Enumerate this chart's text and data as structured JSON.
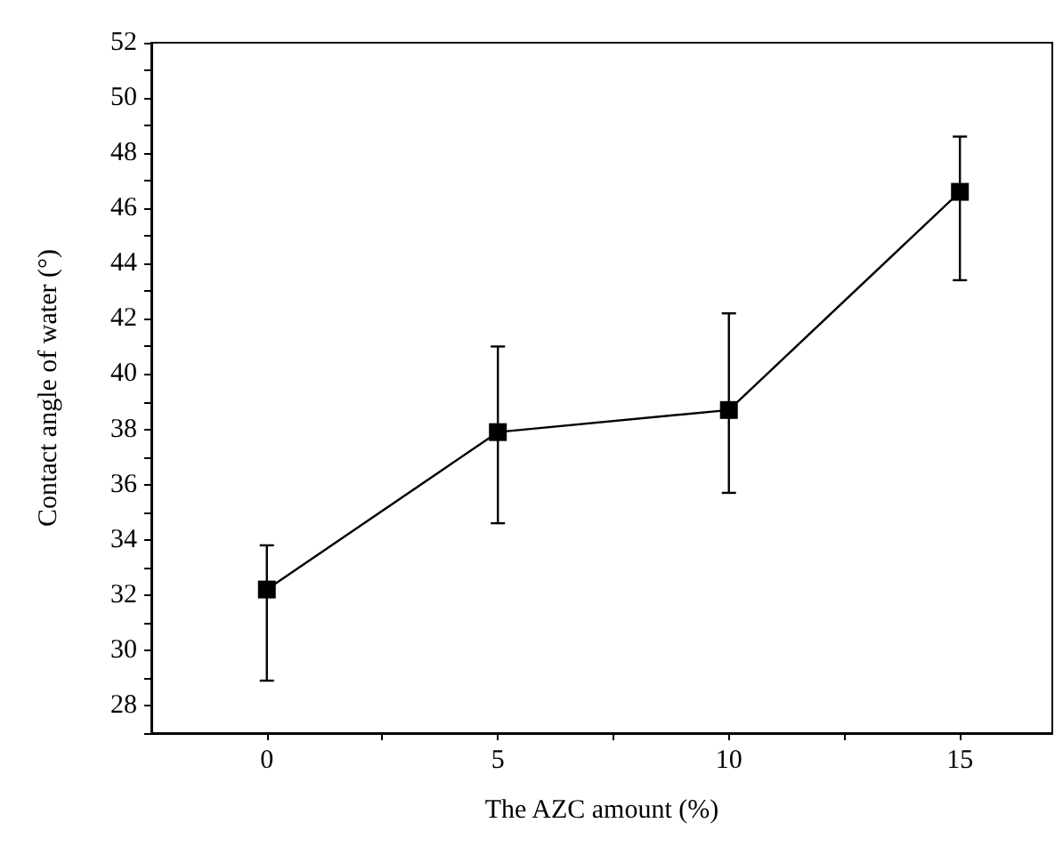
{
  "chart_data": {
    "type": "line",
    "xlabel": "The AZC amount (%)",
    "ylabel": "Contact angle of water (°)",
    "x": [
      0,
      5,
      10,
      15
    ],
    "series": [
      {
        "color": "#000000",
        "values": [
          32.2,
          37.9,
          38.7,
          46.6
        ],
        "errors": [
          [
            28.9,
            33.8
          ],
          [
            34.6,
            41.0
          ],
          [
            35.7,
            42.2
          ],
          [
            43.4,
            48.6
          ]
        ]
      }
    ],
    "xlim": [
      -2.5,
      17
    ],
    "xticks": [
      0,
      {
        "value": 2.5,
        "label": null
      },
      5,
      {
        "value": 7.5,
        "label": null
      },
      10,
      {
        "value": 12.5,
        "label": null
      },
      15
    ],
    "ylim": [
      27,
      52
    ],
    "yticks": [
      {
        "value": 27,
        "label": null
      },
      28,
      {
        "value": 29,
        "label": null
      },
      30,
      {
        "value": 31,
        "label": null
      },
      32,
      {
        "value": 33,
        "label": null
      },
      34,
      {
        "value": 35,
        "label": null
      },
      36,
      {
        "value": 37,
        "label": null
      },
      38,
      {
        "value": 39,
        "label": null
      },
      40,
      {
        "value": 41,
        "label": null
      },
      42,
      {
        "value": 43,
        "label": null
      },
      44,
      {
        "value": 45,
        "label": null
      },
      46,
      {
        "value": 47,
        "label": null
      },
      48,
      {
        "value": 49,
        "label": null
      },
      50,
      {
        "value": 51,
        "label": null
      },
      52
    ],
    "marker": "square",
    "line_style": "solid",
    "grid": false
  }
}
